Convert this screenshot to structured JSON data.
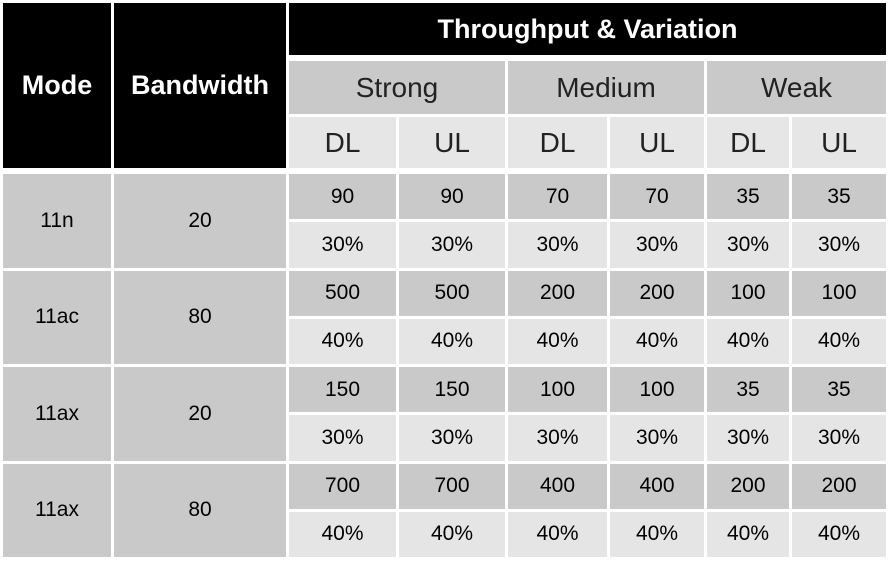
{
  "headers": {
    "mode": "Mode",
    "bandwidth": "Bandwidth",
    "group": "Throughput & Variation",
    "signals": [
      "Strong",
      "Medium",
      "Weak"
    ],
    "directions": [
      "DL",
      "UL",
      "DL",
      "UL",
      "DL",
      "UL"
    ]
  },
  "rows": [
    {
      "mode": "11n",
      "bandwidth": "20",
      "throughput": [
        "90",
        "90",
        "70",
        "70",
        "35",
        "35"
      ],
      "variation": [
        "30%",
        "30%",
        "30%",
        "30%",
        "30%",
        "30%"
      ]
    },
    {
      "mode": "11ac",
      "bandwidth": "80",
      "throughput": [
        "500",
        "500",
        "200",
        "200",
        "100",
        "100"
      ],
      "variation": [
        "40%",
        "40%",
        "40%",
        "40%",
        "40%",
        "40%"
      ]
    },
    {
      "mode": "11ax",
      "bandwidth": "20",
      "throughput": [
        "150",
        "150",
        "100",
        "100",
        "35",
        "35"
      ],
      "variation": [
        "30%",
        "30%",
        "30%",
        "30%",
        "30%",
        "30%"
      ]
    },
    {
      "mode": "11ax",
      "bandwidth": "80",
      "throughput": [
        "700",
        "700",
        "400",
        "400",
        "200",
        "200"
      ],
      "variation": [
        "40%",
        "40%",
        "40%",
        "40%",
        "40%",
        "40%"
      ]
    }
  ],
  "colors": {
    "header_black": "#000000",
    "cell_dark": "#c9c9c9",
    "cell_light": "#e5e5e5"
  }
}
